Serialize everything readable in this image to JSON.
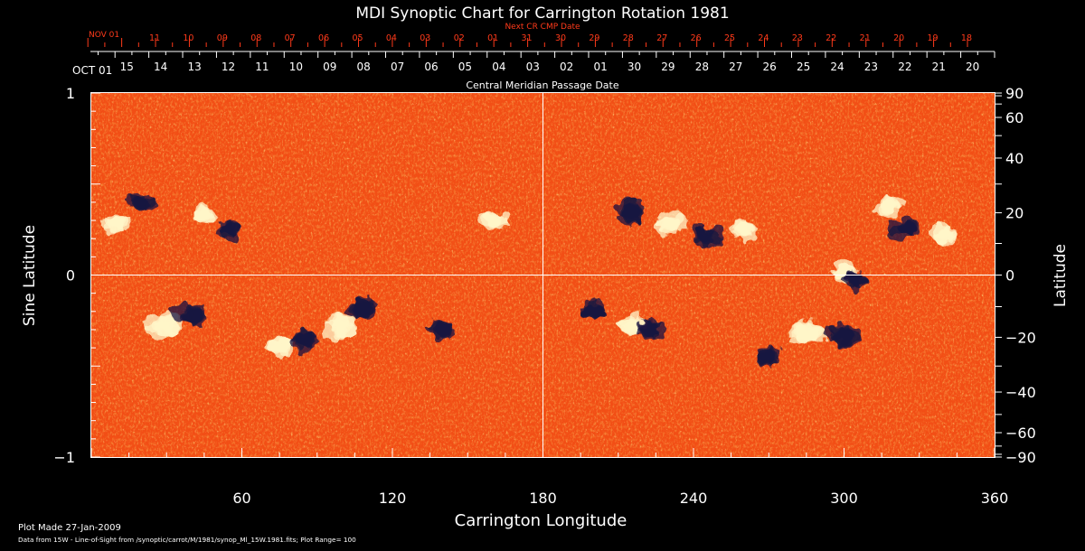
{
  "chart_data": {
    "type": "heatmap",
    "title": "MDI Synoptic Chart for Carrington Rotation 1981",
    "xlabel": "Carrington Longitude",
    "ylabel_left": "Sine Latitude",
    "ylabel_right": "Latitude",
    "xlim": [
      0,
      360
    ],
    "ylim": [
      -1,
      1
    ],
    "x_ticks": [
      60,
      120,
      180,
      240,
      300,
      360
    ],
    "y_ticks_left": [
      {
        "v": 1,
        "label": "1"
      },
      {
        "v": 0,
        "label": "0"
      },
      {
        "v": -1,
        "label": "−1"
      }
    ],
    "y_ticks_right": [
      {
        "lat": 90,
        "label": "90"
      },
      {
        "lat": 60,
        "label": "60"
      },
      {
        "lat": 40,
        "label": "40"
      },
      {
        "lat": 20,
        "label": "20"
      },
      {
        "lat": 0,
        "label": "0"
      },
      {
        "lat": -20,
        "label": "−20"
      },
      {
        "lat": -40,
        "label": "−40"
      },
      {
        "lat": -60,
        "label": "−60"
      },
      {
        "lat": -90,
        "label": "−90"
      }
    ],
    "top_axis_inner": {
      "title": "Central Meridian Passage Date",
      "start_label": "OCT 01",
      "labels": [
        "15",
        "14",
        "13",
        "12",
        "11",
        "10",
        "09",
        "08",
        "07",
        "06",
        "05",
        "04",
        "03",
        "02",
        "01",
        "30",
        "29",
        "28",
        "27",
        "26",
        "25",
        "24",
        "23",
        "22",
        "21",
        "20"
      ]
    },
    "top_axis_outer": {
      "title": "Next CR CMP Date",
      "start_label": "NOV 01",
      "labels": [
        "11",
        "10",
        "09",
        "08",
        "07",
        "06",
        "05",
        "04",
        "03",
        "02",
        "01",
        "31",
        "30",
        "29",
        "28",
        "27",
        "26",
        "25",
        "24",
        "23",
        "22",
        "21",
        "20",
        "19",
        "18"
      ]
    },
    "guide_lines": {
      "x": 180,
      "y": 0
    },
    "active_regions": [
      {
        "lon": 10,
        "sinlat": 0.28,
        "polarity": "positive",
        "strength": 0.7
      },
      {
        "lon": 20,
        "sinlat": 0.4,
        "polarity": "negative",
        "strength": 0.6
      },
      {
        "lon": 45,
        "sinlat": 0.33,
        "polarity": "positive",
        "strength": 0.6
      },
      {
        "lon": 55,
        "sinlat": 0.25,
        "polarity": "negative",
        "strength": 0.6
      },
      {
        "lon": 30,
        "sinlat": -0.28,
        "polarity": "positive",
        "strength": 0.9
      },
      {
        "lon": 40,
        "sinlat": -0.22,
        "polarity": "negative",
        "strength": 0.9
      },
      {
        "lon": 75,
        "sinlat": -0.38,
        "polarity": "positive",
        "strength": 0.8
      },
      {
        "lon": 85,
        "sinlat": -0.35,
        "polarity": "negative",
        "strength": 0.7
      },
      {
        "lon": 100,
        "sinlat": -0.28,
        "polarity": "positive",
        "strength": 0.9
      },
      {
        "lon": 108,
        "sinlat": -0.18,
        "polarity": "negative",
        "strength": 0.8
      },
      {
        "lon": 160,
        "sinlat": 0.3,
        "polarity": "positive",
        "strength": 0.6
      },
      {
        "lon": 140,
        "sinlat": -0.3,
        "polarity": "negative",
        "strength": 0.6
      },
      {
        "lon": 215,
        "sinlat": 0.35,
        "polarity": "negative",
        "strength": 0.8
      },
      {
        "lon": 230,
        "sinlat": 0.28,
        "polarity": "positive",
        "strength": 0.8
      },
      {
        "lon": 245,
        "sinlat": 0.22,
        "polarity": "negative",
        "strength": 0.7
      },
      {
        "lon": 260,
        "sinlat": 0.25,
        "polarity": "positive",
        "strength": 0.6
      },
      {
        "lon": 200,
        "sinlat": -0.2,
        "polarity": "negative",
        "strength": 0.6
      },
      {
        "lon": 215,
        "sinlat": -0.28,
        "polarity": "positive",
        "strength": 0.7
      },
      {
        "lon": 222,
        "sinlat": -0.3,
        "polarity": "negative",
        "strength": 0.7
      },
      {
        "lon": 285,
        "sinlat": -0.32,
        "polarity": "positive",
        "strength": 1.0
      },
      {
        "lon": 300,
        "sinlat": -0.33,
        "polarity": "negative",
        "strength": 0.9
      },
      {
        "lon": 270,
        "sinlat": -0.45,
        "polarity": "negative",
        "strength": 0.6
      },
      {
        "lon": 318,
        "sinlat": 0.38,
        "polarity": "positive",
        "strength": 0.7
      },
      {
        "lon": 325,
        "sinlat": 0.25,
        "polarity": "negative",
        "strength": 0.8
      },
      {
        "lon": 340,
        "sinlat": 0.22,
        "polarity": "positive",
        "strength": 0.6
      },
      {
        "lon": 300,
        "sinlat": 0.02,
        "polarity": "positive",
        "strength": 0.6
      },
      {
        "lon": 305,
        "sinlat": -0.02,
        "polarity": "negative",
        "strength": 0.6
      }
    ]
  },
  "footer": {
    "plot_made": "Plot Made 27-Jan-2009",
    "data_source": "Data from 15W - Line-of-Sight from /synoptic/carrot/M/1981/synop_Ml_15W.1981.fits; Plot Range=  100"
  },
  "colors": {
    "background": "#000000",
    "axis": "#ffffff",
    "outer_axis": "#ff3a1a",
    "field_base": "#f24e15",
    "positive": "#fff6c8",
    "negative": "#1a1440"
  }
}
